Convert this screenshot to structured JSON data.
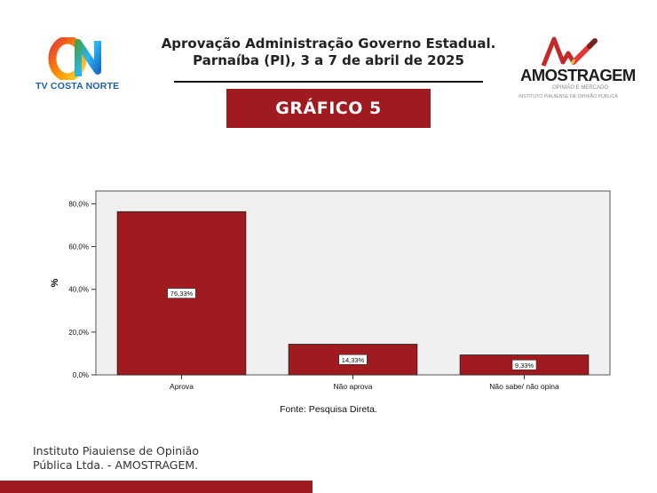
{
  "header": {
    "title": "Aprovação Administração Governo Estadual.",
    "subtitle": "Parnaíba (PI), 3 a 7 de abril de 2025",
    "banner": "GRÁFICO 5"
  },
  "logos": {
    "left_brand": "TV COSTA NORTE",
    "right_name": "AMOSTRAGEM",
    "right_tagline": "OPINIÃO E MERCADO",
    "right_subtitle": "INSTITUTO PIAUIENSE DE OPINIÃO PÚBLICA"
  },
  "colors": {
    "bar": "#a01b1f",
    "banner": "#a01b1f",
    "plot_background": "#f0f0f0",
    "brand_blue": "#1a5fb4"
  },
  "chart_data": {
    "type": "bar",
    "ylabel": "%",
    "xlabel": "",
    "ylim": [
      0,
      86
    ],
    "yticks": [
      0,
      20,
      40,
      60,
      80
    ],
    "ytick_labels": [
      "0,0%",
      "20,0%",
      "40,0%",
      "60,0%",
      "80,0%"
    ],
    "categories": [
      "Aprova",
      "Não aprova",
      "Não sabe/ não opina"
    ],
    "values": [
      76.33,
      14.33,
      9.33
    ],
    "value_labels": [
      "76,33%",
      "14,33%",
      "9,33%"
    ],
    "grid": false
  },
  "source": "Fonte: Pesquisa Direta.",
  "footer": {
    "line1": "Instituto Piauiense de Opinião",
    "line2": "Pública Ltda. - AMOSTRAGEM."
  }
}
